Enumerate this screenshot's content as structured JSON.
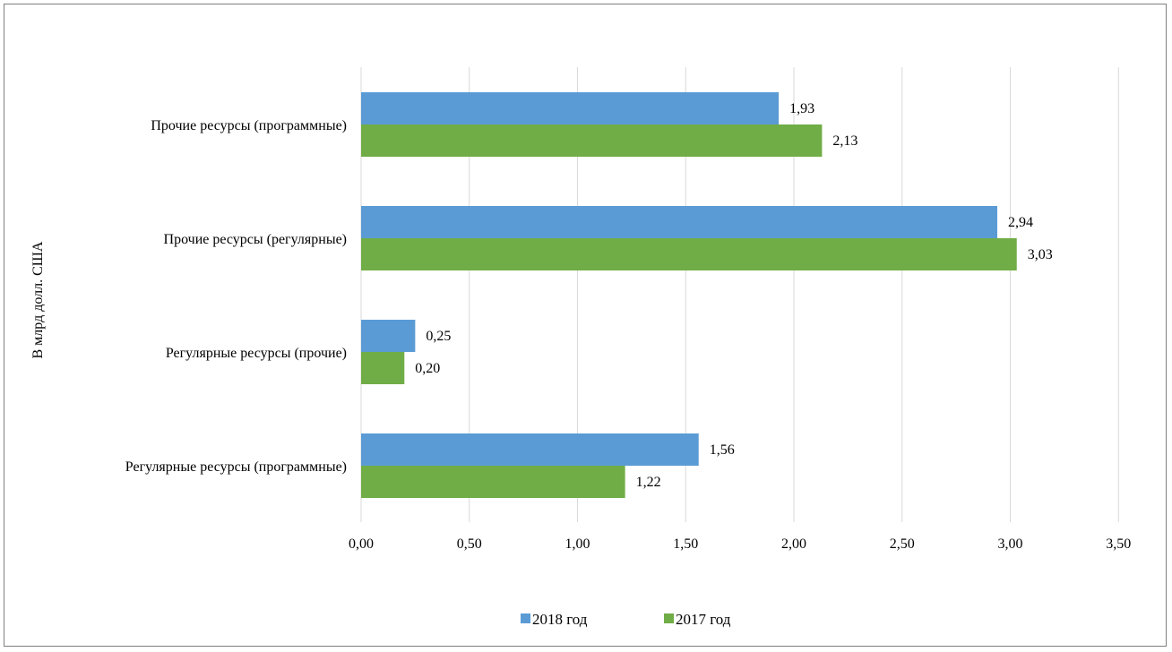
{
  "chart_data": {
    "type": "bar",
    "orientation": "horizontal",
    "ylabel": "В млрд долл. США",
    "categories": [
      "Прочие ресурсы (программные)",
      "Прочие ресурсы (регулярные)",
      "Регулярные ресурсы (прочие)",
      "Регулярные ресурсы (программные)"
    ],
    "series": [
      {
        "name": "2018 год",
        "color": "#5b9bd5",
        "values": [
          1.93,
          2.94,
          0.25,
          1.56
        ],
        "labels": [
          "1,93",
          "2,94",
          "0,25",
          "1,56"
        ]
      },
      {
        "name": "2017 год",
        "color": "#70ad47",
        "values": [
          2.13,
          3.03,
          0.2,
          1.22
        ],
        "labels": [
          "2,13",
          "3,03",
          "0,20",
          "1,22"
        ]
      }
    ],
    "xlim": [
      0,
      3.5
    ],
    "xticks": [
      0,
      0.5,
      1.0,
      1.5,
      2.0,
      2.5,
      3.0,
      3.5
    ],
    "xtick_labels": [
      "0,00",
      "0,50",
      "1,00",
      "1,50",
      "2,00",
      "2,50",
      "3,00",
      "3,50"
    ],
    "grid": true,
    "gridline_color": "#d9d9d9",
    "legend_position": "bottom"
  }
}
